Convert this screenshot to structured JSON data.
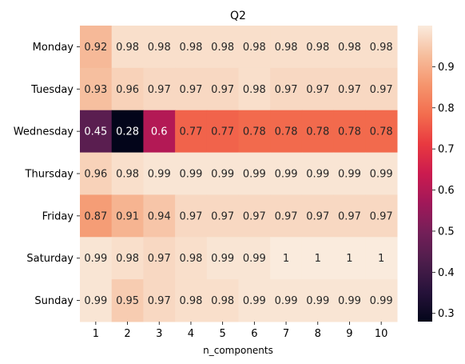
{
  "chart_data": {
    "type": "heatmap",
    "title": "Q2",
    "xlabel": "n_components",
    "ylabel": "",
    "x_categories": [
      "1",
      "2",
      "3",
      "4",
      "5",
      "6",
      "7",
      "8",
      "9",
      "10"
    ],
    "y_categories": [
      "Monday",
      "Tuesday",
      "Wednesday",
      "Thursday",
      "Friday",
      "Saturday",
      "Sunday"
    ],
    "values": [
      [
        0.92,
        0.98,
        0.98,
        0.98,
        0.98,
        0.98,
        0.98,
        0.98,
        0.98,
        0.98
      ],
      [
        0.93,
        0.96,
        0.97,
        0.97,
        0.97,
        0.98,
        0.97,
        0.97,
        0.97,
        0.97
      ],
      [
        0.45,
        0.28,
        0.6,
        0.77,
        0.77,
        0.78,
        0.78,
        0.78,
        0.78,
        0.78
      ],
      [
        0.96,
        0.98,
        0.99,
        0.99,
        0.99,
        0.99,
        0.99,
        0.99,
        0.99,
        0.99
      ],
      [
        0.87,
        0.91,
        0.94,
        0.97,
        0.97,
        0.97,
        0.97,
        0.97,
        0.97,
        0.97
      ],
      [
        0.99,
        0.98,
        0.97,
        0.98,
        0.99,
        0.99,
        1,
        1,
        1,
        1
      ],
      [
        0.99,
        0.95,
        0.97,
        0.98,
        0.98,
        0.99,
        0.99,
        0.99,
        0.99,
        0.99
      ]
    ],
    "colormap": "rocket",
    "vmin": 0.28,
    "vmax": 1.0,
    "colorbar_ticks": [
      0.3,
      0.4,
      0.5,
      0.6,
      0.7,
      0.8,
      0.9
    ],
    "colorbar_tick_labels": [
      "0.3",
      "0.4",
      "0.5",
      "0.6",
      "0.7",
      "0.8",
      "0.9"
    ],
    "annotations": true
  }
}
